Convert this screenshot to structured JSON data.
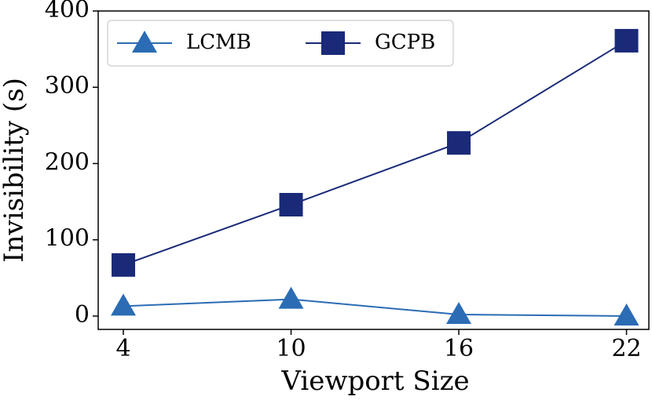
{
  "chart_data": {
    "type": "line",
    "x_label": "Viewport Size",
    "y_label": "Invisibility (s)",
    "x": [
      4,
      10,
      16,
      22
    ],
    "series": [
      {
        "name": "LCMB",
        "color": "#2b6cb4",
        "marker": "triangle",
        "values": [
          13,
          22,
          2,
          0
        ]
      },
      {
        "name": "GCPB",
        "color": "#1a2a78",
        "marker": "square",
        "values": [
          67,
          146,
          227,
          361
        ]
      }
    ],
    "xlim": [
      3.1,
      22.8
    ],
    "xticks": [
      4,
      10,
      16,
      22
    ],
    "ylim": [
      -17.5,
      400
    ],
    "yticks": [
      0,
      100,
      200,
      300,
      400
    ],
    "legend": "upper left"
  }
}
